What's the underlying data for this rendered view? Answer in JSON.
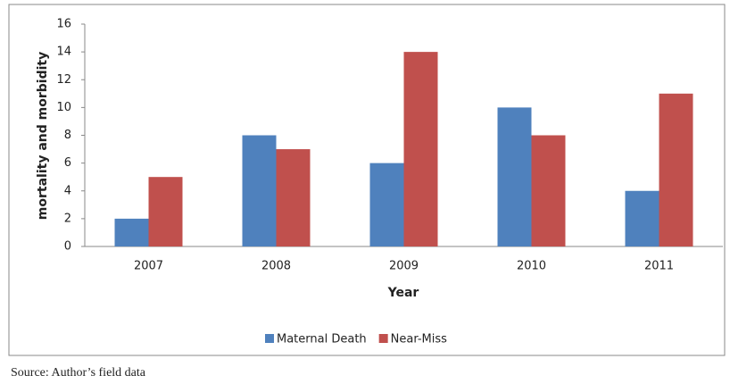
{
  "chart_data": {
    "type": "bar",
    "y_label": "mortality and morbidity",
    "x_label": "Year",
    "categories": [
      "2007",
      "2008",
      "2009",
      "2010",
      "2011"
    ],
    "series": [
      {
        "name": "Maternal Death",
        "color": "#4f81bd",
        "values": [
          2,
          8,
          6,
          10,
          4
        ]
      },
      {
        "name": "Near-Miss",
        "color": "#c0504d",
        "values": [
          5,
          7,
          14,
          8,
          11
        ]
      }
    ],
    "ylim": [
      0,
      16
    ],
    "yticks": [
      0,
      2,
      4,
      6,
      8,
      10,
      12,
      14,
      16
    ],
    "grid": false,
    "legend": "bottom",
    "source": "Source: Author’s field data"
  }
}
